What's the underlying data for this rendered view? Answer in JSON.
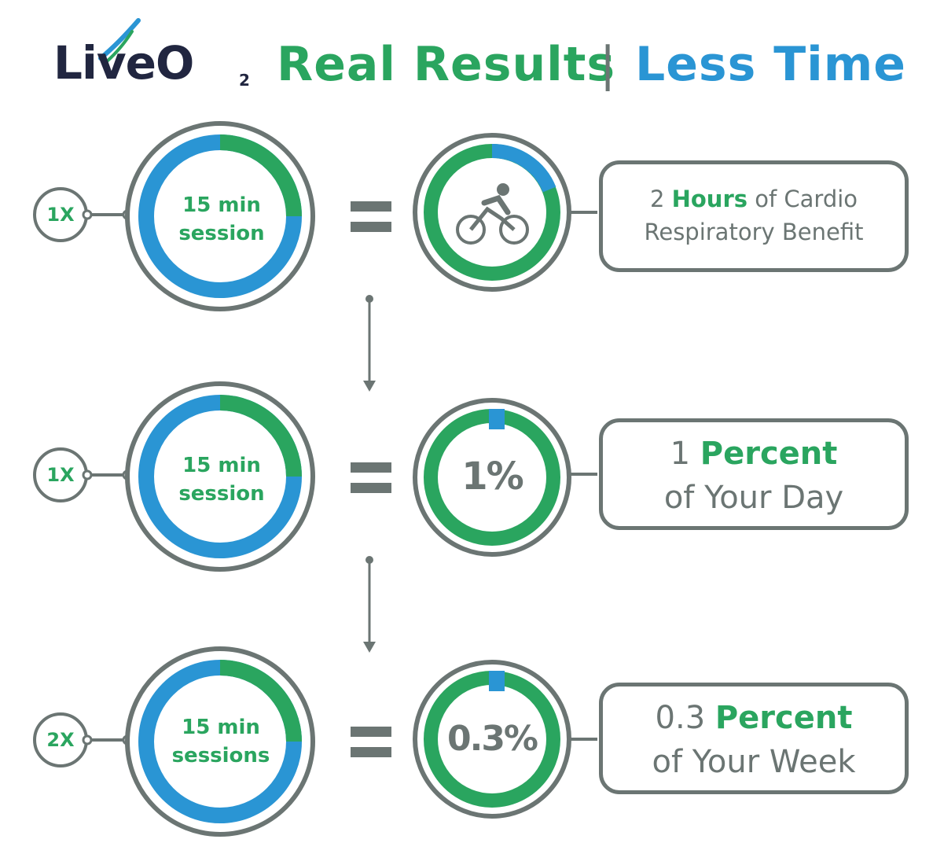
{
  "header": {
    "logo": {
      "live": "LiveO",
      "sub": "2"
    },
    "title_left": "Real Results",
    "separator": "|",
    "title_right": "Less Time"
  },
  "rows": [
    {
      "multiplier": "1X",
      "session": {
        "line1": "15 min",
        "line2": "session"
      },
      "equals": "=",
      "result_icon": "bicycle-rider-icon",
      "card": {
        "pre": "2 ",
        "highlight": "Hours",
        "post": " of Cardio",
        "line2": "Respiratory Benefit"
      }
    },
    {
      "multiplier": "1X",
      "session": {
        "line1": "15 min",
        "line2": "session"
      },
      "equals": "=",
      "result_text": "1%",
      "card": {
        "pre": "1 ",
        "highlight": "Percent",
        "post": "",
        "line2": "of Your Day"
      }
    },
    {
      "multiplier": "2X",
      "session": {
        "line1": "15 min",
        "line2": "sessions"
      },
      "equals": "=",
      "result_text": "0.3%",
      "card": {
        "pre": "0.3 ",
        "highlight": "Percent",
        "post": "",
        "line2": "of Your Week"
      }
    }
  ],
  "colors": {
    "green": "#2aa55f",
    "blue": "#2a95d4",
    "gray": "#6b7573",
    "navy": "#212640"
  }
}
